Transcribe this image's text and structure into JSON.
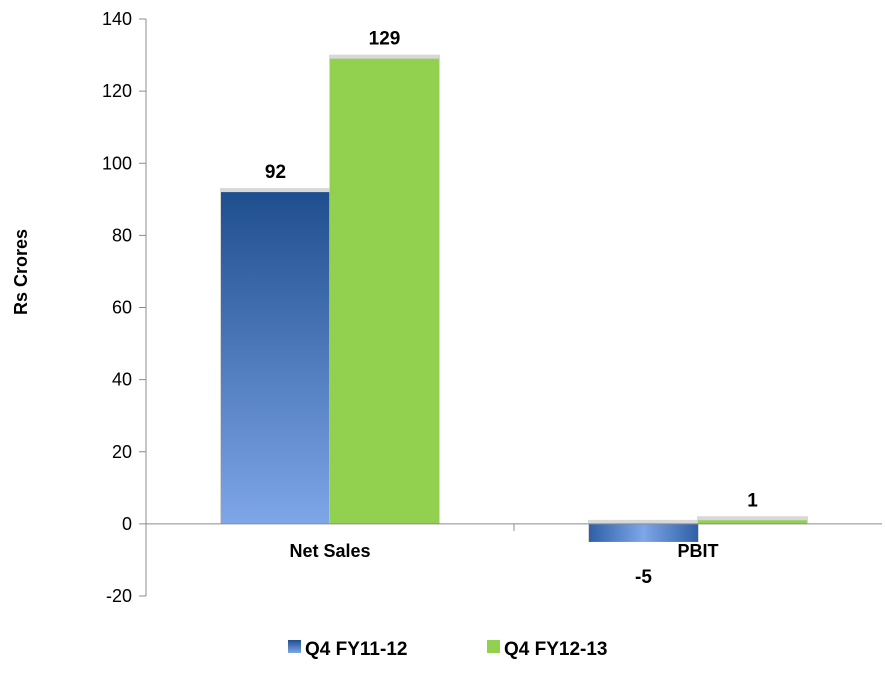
{
  "chart_data": {
    "type": "bar",
    "categories": [
      "Net Sales",
      "PBIT"
    ],
    "series": [
      {
        "name": "Q4 FY11-12",
        "values": [
          92,
          -5
        ],
        "color": "#2f5fa6",
        "color_light": "#7ea6e8"
      },
      {
        "name": "Q4 FY12-13",
        "values": [
          129,
          1
        ],
        "color": "#92d050",
        "color_light": "#92d050"
      }
    ],
    "data_labels": [
      [
        "92",
        "-5"
      ],
      [
        "129",
        "1"
      ]
    ],
    "ylabel": "Rs Crores",
    "xlabel": "",
    "ylim": [
      -20,
      140
    ],
    "yticks": [
      -20,
      0,
      20,
      40,
      60,
      80,
      100,
      120,
      140
    ],
    "grid": false,
    "legend_position": "bottom"
  }
}
